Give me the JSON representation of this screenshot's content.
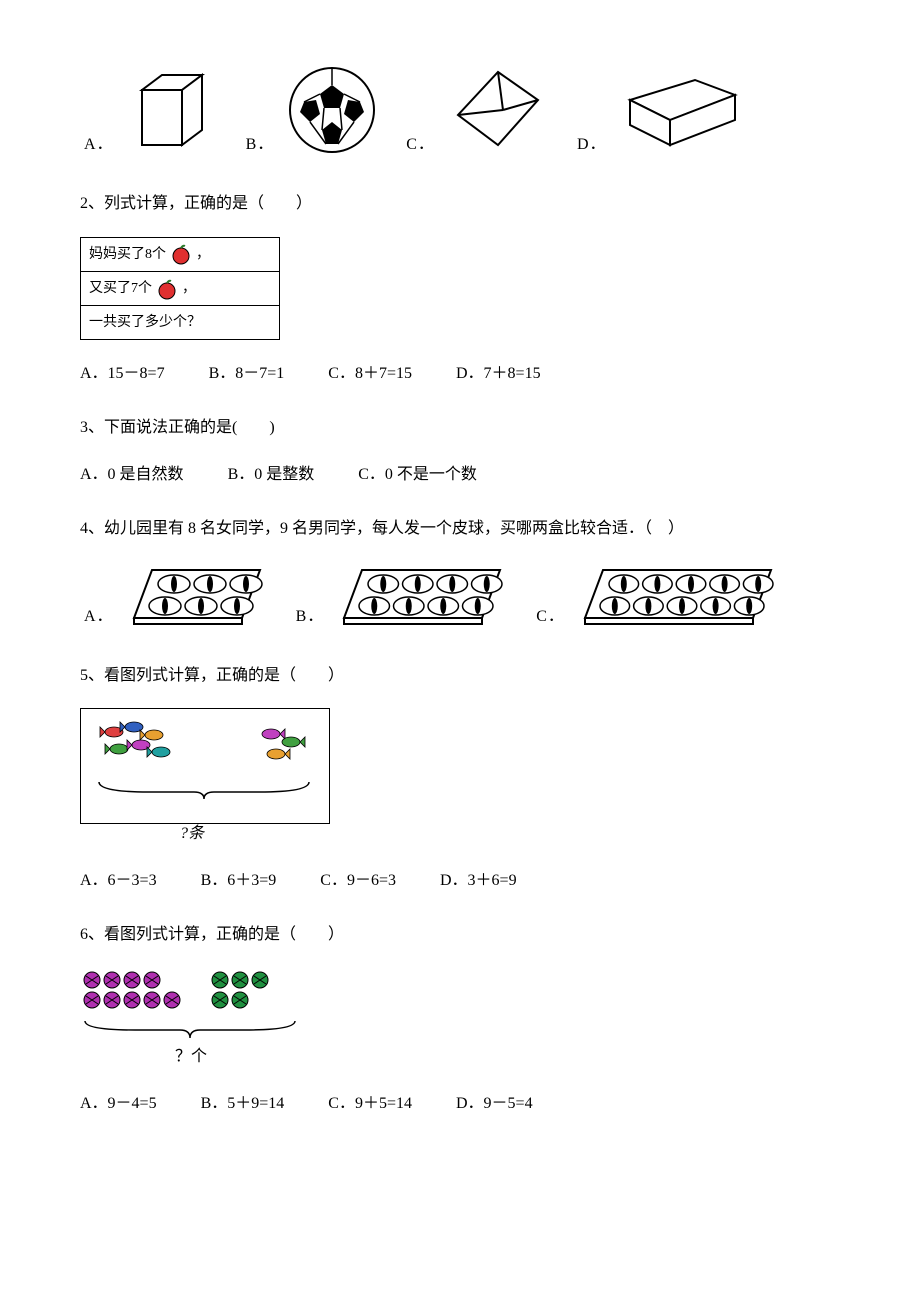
{
  "q1": {
    "options": {
      "a_label": "A．",
      "b_label": "B．",
      "c_label": "C．",
      "d_label": "D．"
    },
    "colors": {
      "stroke": "#000000",
      "fill": "#ffffff"
    }
  },
  "q2": {
    "prompt": "2、列式计算，正确的是（　　）",
    "box": {
      "row1_text": "妈妈买了8个",
      "row1_comma": "，",
      "row2_text": "又买了7个",
      "row2_comma": "，",
      "row3_text": "一共买了多少个？"
    },
    "options": {
      "a": "A．15－8=7",
      "b": "B．8－7=1",
      "c": "C．8＋7=15",
      "d": "D．7＋8=15"
    },
    "apple_colors": {
      "fill": "#e03030",
      "leaf": "#2a7a2a",
      "stroke": "#000000"
    }
  },
  "q3": {
    "prompt": "3、下面说法正确的是(　　)",
    "options": {
      "a": "A．0 是自然数",
      "b": "B．0 是整数",
      "c": "C．0 不是一个数"
    }
  },
  "q4": {
    "prompt": "4、幼儿园里有 8 名女同学，9 名男同学，每人发一个皮球，买哪两盒比较合适．（　）",
    "options": {
      "a_label": "A．",
      "b_label": "B．",
      "c_label": "C．"
    },
    "tray_colors": {
      "stroke": "#000000",
      "ball_stroke": "#000000",
      "ball_fill": "#ffffff"
    },
    "trays": {
      "a_cols": 3,
      "b_cols": 4,
      "c_cols": 5,
      "rows": 2
    }
  },
  "q5": {
    "prompt": "5、看图列式计算，正确的是（　　）",
    "brace_label": "?条",
    "options": {
      "a": "A．6－3=3",
      "b": "B．6＋3=9",
      "c": "C．9－6=3",
      "d": "D．3＋6=9"
    },
    "fish_colors": [
      "#e04040",
      "#3060c0",
      "#e8a030",
      "#40a040",
      "#c040c0",
      "#20a0a0"
    ],
    "right_fish_colors": [
      "#c040c0",
      "#40a040",
      "#e8a030"
    ],
    "brace_color": "#000000"
  },
  "q6": {
    "prompt": "6、看图列式计算，正确的是（　　）",
    "brace_label": "？个",
    "options": {
      "a": "A．9－4=5",
      "b": "B．5＋9=14",
      "c": "C．9＋5=14",
      "d": "D．9－5=4"
    },
    "ball_colors": {
      "left": "#b030b0",
      "right": "#209040",
      "pattern": "#000000"
    },
    "brace_color": "#000000"
  }
}
